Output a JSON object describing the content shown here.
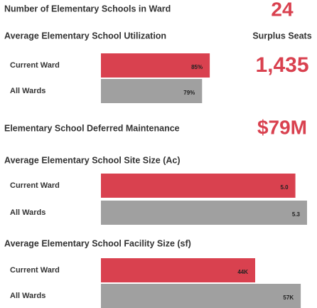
{
  "kpis": [
    {
      "label": "Number of Elementary Schools in Ward",
      "value": "24"
    },
    {
      "label": "Surplus Seats",
      "value": "1,435"
    },
    {
      "label": "Elementary School Deferred Maintenance",
      "value": "$79M"
    }
  ],
  "chart_data": [
    {
      "type": "bar",
      "orientation": "horizontal",
      "title": "Average Elementary School Utilization",
      "categories": [
        "Current Ward",
        "All Wards"
      ],
      "values": [
        85,
        79
      ],
      "value_labels": [
        "85%",
        "79%"
      ],
      "colors": [
        "#d9414f",
        "#a0a0a0"
      ],
      "xlim": [
        0,
        161
      ]
    },
    {
      "type": "bar",
      "orientation": "horizontal",
      "title": "Average Elementary School Site Size (Ac)",
      "categories": [
        "Current Ward",
        "All Wards"
      ],
      "values": [
        5.0,
        5.3
      ],
      "value_labels": [
        "5.0",
        "5.3"
      ],
      "colors": [
        "#d9414f",
        "#a0a0a0"
      ],
      "xlim": [
        0,
        5.3
      ]
    },
    {
      "type": "bar",
      "orientation": "horizontal",
      "title": "Average Elementary School Facility Size (sf)",
      "categories": [
        "Current Ward",
        "All Wards"
      ],
      "values": [
        44000,
        57000
      ],
      "value_labels": [
        "44K",
        "57K"
      ],
      "colors": [
        "#d9414f",
        "#a0a0a0"
      ],
      "xlim": [
        0,
        58800
      ]
    }
  ]
}
